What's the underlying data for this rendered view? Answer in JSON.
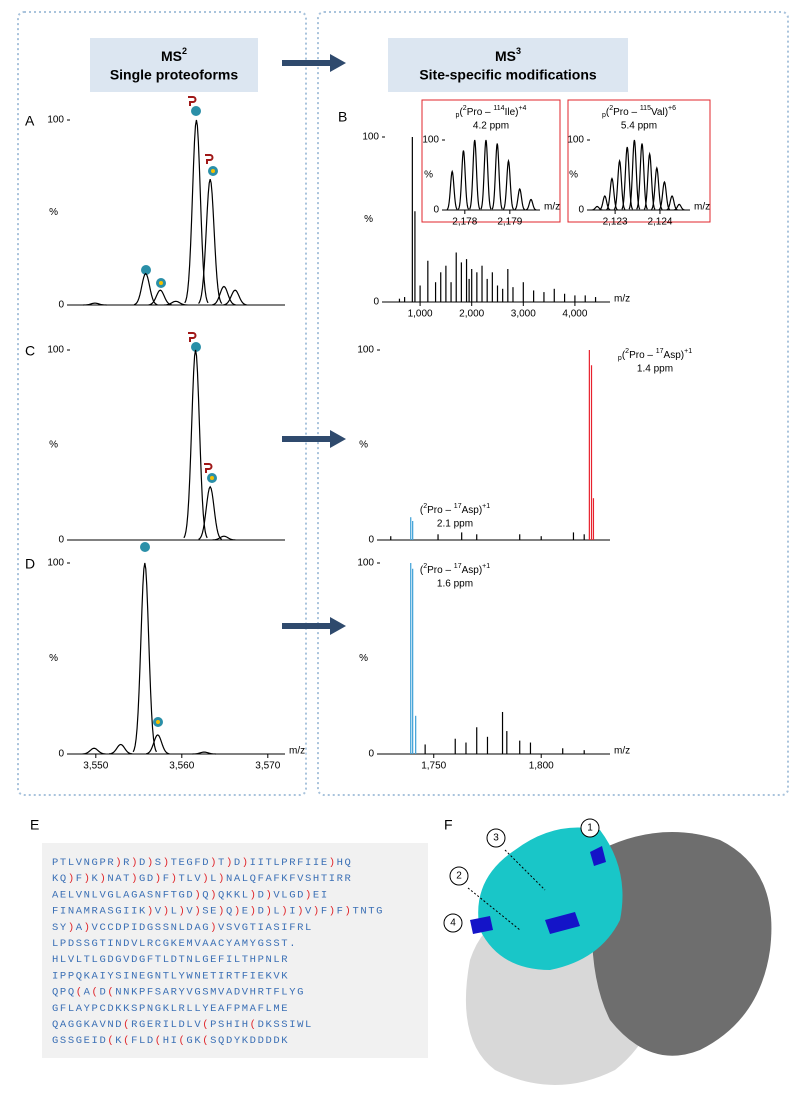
{
  "headers": [
    {
      "title": "MS",
      "sup": "2",
      "subtitle": "Single proteoforms"
    },
    {
      "title": "MS",
      "sup": "3",
      "subtitle": "Site-specific modifications"
    }
  ],
  "spectra": [
    {
      "label": "A",
      "kind": "profile",
      "xlim": [
        3547,
        3572
      ],
      "ylim": [
        0,
        100
      ],
      "yticks": [
        0,
        100
      ],
      "ylabel": "%",
      "series": [
        {
          "color": "#000000",
          "x": [
            3549.9,
            3555.8,
            3557.5,
            3559.3,
            3561.7,
            3563.3,
            3564.9,
            3566.2
          ],
          "values": [
            1,
            17,
            8,
            2,
            100,
            68,
            10,
            8
          ]
        }
      ]
    },
    {
      "label": "B",
      "kind": "stick",
      "xlim": [
        320,
        4680
      ],
      "ylim": [
        0,
        100
      ],
      "yticks": [
        0,
        100
      ],
      "ylabel": "%",
      "xticks": [
        {
          "value": 1000,
          "label": "1,000"
        },
        {
          "value": 2000,
          "label": "2,000"
        },
        {
          "value": 3000,
          "label": "3,000"
        },
        {
          "value": 4000,
          "label": "4,000"
        }
      ],
      "xlabel": "m/z",
      "series": [
        {
          "color": "#000000",
          "x": [
            600,
            700,
            850,
            900,
            1000,
            1150,
            1300,
            1400,
            1500,
            1600,
            1700,
            1800,
            1900,
            1950,
            2000,
            2100,
            2200,
            2300,
            2400,
            2500,
            2600,
            2700,
            2800,
            3000,
            3200,
            3400,
            3600,
            3800,
            4000,
            4200,
            4400
          ],
          "values": [
            2,
            3,
            100,
            55,
            10,
            25,
            12,
            18,
            22,
            12,
            30,
            24,
            26,
            14,
            20,
            18,
            22,
            14,
            18,
            10,
            8,
            20,
            9,
            12,
            7,
            6,
            8,
            5,
            4,
            4,
            3
          ]
        }
      ]
    },
    {
      "kind": "profile",
      "xlim": [
        2177.56,
        2179.67
      ],
      "ylim": [
        0,
        100
      ],
      "yticks": [
        0,
        100
      ],
      "ylabel": "%",
      "xticks": [
        {
          "value": 2178,
          "label": "2,178"
        },
        {
          "value": 2179,
          "label": "2,179"
        }
      ],
      "xlabel": "m/z",
      "series": [
        {
          "color": "#000000",
          "x": [
            2177.72,
            2177.97,
            2178.22,
            2178.47,
            2178.72,
            2178.97,
            2179.22,
            2179.47
          ],
          "values": [
            55,
            85,
            100,
            100,
            95,
            70,
            30,
            15
          ]
        }
      ],
      "annotations": [
        {
          "color": "#000000",
          "parts": [
            {
              "text": "p",
              "style": "sub"
            },
            {
              "text": "(",
              "style": "normal"
            },
            {
              "text": "2",
              "style": "sup"
            },
            {
              "text": "Pro – ",
              "style": "normal"
            },
            {
              "text": "114",
              "style": "sup"
            },
            {
              "text": "Ile)",
              "style": "normal"
            },
            {
              "text": "+4",
              "style": "sup"
            }
          ],
          "ppm": "4.2 ppm"
        }
      ]
    },
    {
      "kind": "profile",
      "xlim": [
        2122.44,
        2124.67
      ],
      "ylim": [
        0,
        100
      ],
      "yticks": [
        0,
        100
      ],
      "ylabel": "%",
      "xticks": [
        {
          "value": 2123,
          "label": "2,123"
        },
        {
          "value": 2124,
          "label": "2,124"
        }
      ],
      "xlabel": "m/z",
      "series": [
        {
          "color": "#000000",
          "x": [
            2122.6,
            2122.77,
            2122.93,
            2123.1,
            2123.27,
            2123.43,
            2123.6,
            2123.77,
            2123.93,
            2124.1,
            2124.27,
            2124.43
          ],
          "values": [
            5,
            20,
            45,
            70,
            90,
            100,
            95,
            80,
            60,
            40,
            20,
            8
          ]
        }
      ],
      "annotations": [
        {
          "color": "#000000",
          "parts": [
            {
              "text": "p",
              "style": "sub"
            },
            {
              "text": "(",
              "style": "normal"
            },
            {
              "text": "2",
              "style": "sup"
            },
            {
              "text": "Pro – ",
              "style": "normal"
            },
            {
              "text": "115",
              "style": "sup"
            },
            {
              "text": "Val)",
              "style": "normal"
            },
            {
              "text": "+6",
              "style": "sup"
            }
          ],
          "ppm": "5.4 ppm"
        }
      ]
    },
    {
      "label": "C",
      "kind": "profile",
      "xlim": [
        3547,
        3572
      ],
      "ylim": [
        0,
        100
      ],
      "yticks": [
        0,
        100
      ],
      "ylabel": "%",
      "series": [
        {
          "color": "#000000",
          "x": [
            3561.6,
            3563.3,
            3564.9
          ],
          "values": [
            100,
            28,
            2
          ]
        }
      ]
    },
    {
      "kind": "stick",
      "xlim": [
        1725,
        1832
      ],
      "ylim": [
        0,
        100
      ],
      "yticks": [
        0,
        100
      ],
      "ylabel": "%",
      "series": [
        {
          "color": "#000000",
          "x": [
            1730,
            1752,
            1763,
            1770,
            1790,
            1800,
            1815,
            1820
          ],
          "values": [
            2,
            3,
            4,
            3,
            3,
            2,
            4,
            3
          ]
        },
        {
          "color": "#e8212d",
          "x": [
            1822.4,
            1823.4,
            1824.3
          ],
          "values": [
            100,
            92,
            22
          ]
        },
        {
          "color": "#3a9fd6",
          "x": [
            1739.3,
            1740.2
          ],
          "values": [
            12,
            10
          ]
        }
      ],
      "annotations": [
        {
          "color": "#000000",
          "parts": [
            {
              "text": "p",
              "style": "sub"
            },
            {
              "text": "(",
              "style": "normal"
            },
            {
              "text": "2",
              "style": "sup"
            },
            {
              "text": "Pro – ",
              "style": "normal"
            },
            {
              "text": "17",
              "style": "sup"
            },
            {
              "text": "Asp)",
              "style": "normal"
            },
            {
              "text": "+1",
              "style": "sup"
            }
          ],
          "ppm": "1.4 ppm"
        },
        {
          "color": "#000000",
          "parts": [
            {
              "text": "(",
              "style": "normal"
            },
            {
              "text": "2",
              "style": "sup"
            },
            {
              "text": "Pro – ",
              "style": "normal"
            },
            {
              "text": "17",
              "style": "sup"
            },
            {
              "text": "Asp)",
              "style": "normal"
            },
            {
              "text": "+1",
              "style": "sup"
            }
          ],
          "ppm": "2.1 ppm"
        }
      ]
    },
    {
      "label": "D",
      "kind": "profile",
      "xlim": [
        3547,
        3572
      ],
      "ylim": [
        0,
        100
      ],
      "yticks": [
        0,
        100
      ],
      "ylabel": "%",
      "xticks": [
        {
          "value": 3550,
          "label": "3,550"
        },
        {
          "value": 3560,
          "label": "3,560"
        },
        {
          "value": 3570,
          "label": "3,570"
        }
      ],
      "xlabel": "m/z",
      "series": [
        {
          "color": "#000000",
          "x": [
            3549.8,
            3552.9,
            3555.7,
            3557.2,
            3562.6
          ],
          "values": [
            3,
            5,
            100,
            10,
            1
          ]
        }
      ]
    },
    {
      "kind": "stick",
      "xlim": [
        1725,
        1832
      ],
      "ylim": [
        0,
        100
      ],
      "yticks": [
        0,
        100
      ],
      "ylabel": "%",
      "xticks": [
        {
          "value": 1750,
          "label": "1,750"
        },
        {
          "value": 1800,
          "label": "1,800"
        }
      ],
      "xlabel": "m/z",
      "series": [
        {
          "color": "#000000",
          "x": [
            1746,
            1760,
            1765,
            1770,
            1775,
            1782,
            1784,
            1790,
            1795,
            1810,
            1820
          ],
          "values": [
            5,
            8,
            6,
            14,
            9,
            22,
            12,
            7,
            6,
            3,
            2
          ]
        },
        {
          "color": "#3a9fd6",
          "x": [
            1739.3,
            1740.2,
            1741.6
          ],
          "values": [
            100,
            97,
            20
          ]
        }
      ],
      "annotations": [
        {
          "color": "#000000",
          "parts": [
            {
              "text": "(",
              "style": "normal"
            },
            {
              "text": "2",
              "style": "sup"
            },
            {
              "text": "Pro – ",
              "style": "normal"
            },
            {
              "text": "17",
              "style": "sup"
            },
            {
              "text": "Asp)",
              "style": "normal"
            },
            {
              "text": "+1",
              "style": "sup"
            }
          ],
          "ppm": "1.6 ppm"
        }
      ]
    }
  ],
  "sequence": {
    "label": "E",
    "lines": [
      "PTLVNGPR)R)D)S)TEGFD)T)D)IITLPRFIIE)HQ",
      "KQ)F)K)NAT)GD)F)TLV)L)NALQFAFKFVSHTIRR",
      "AELVNLVGLAGASNFTGD)Q)QKKL)D)VLGD)EI",
      "FINAMRASGIIK)V)L)V)SE)Q)E)D)L)I)V)F)F)TNTG",
      "SY)A)VCCDPIDGSSNLDAG)VSVGTIASIFRL",
      "LPDSSGTINDVLRCGKEMVAACYAMYGSST.",
      "HLVLTLGDGVDGFTLDTNLGEFILTHPNLR",
      "IPPQKAIYSINEGNTLYWNETIRTFIEKVK",
      "QPQ(A(D(NNKPFSARYVGSMVADVHRTFLYG",
      "GFLAYPCDKKSPNGKLRLLYEAFPMAFLME",
      "QAGGKAVND(RGERILDLV(PSHIH(DKSSIWL",
      "GSSGEID(K(FLD(HI(GK(SQDYKDDDDK"
    ]
  },
  "structure": {
    "label": "F",
    "sites": [
      "1",
      "3",
      "2",
      "4"
    ]
  }
}
